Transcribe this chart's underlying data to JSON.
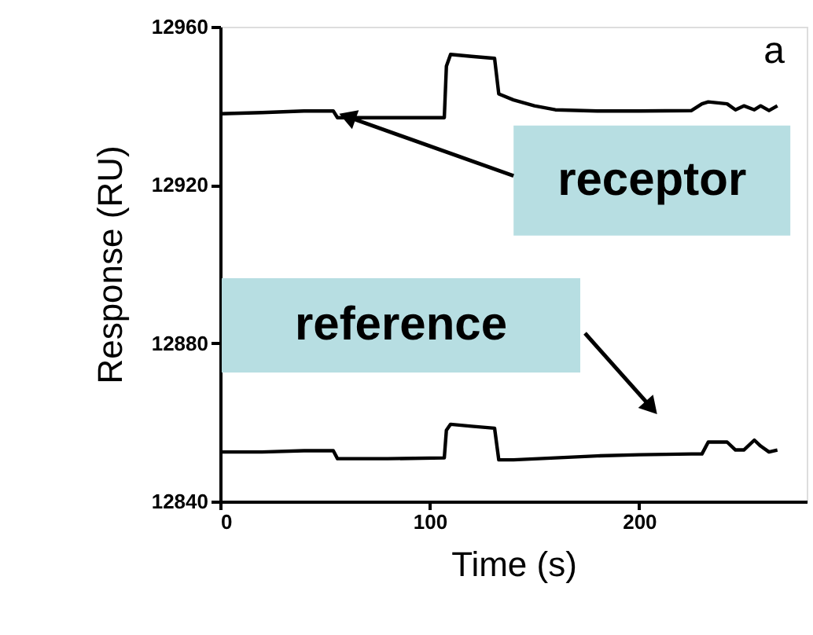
{
  "chart_data": {
    "type": "line",
    "xlabel": "Time (s)",
    "ylabel": "Response (RU)",
    "xlim": [
      0,
      280
    ],
    "xticks": [
      0,
      100,
      200
    ],
    "ylim": [
      12840,
      12960
    ],
    "yticks": [
      12840,
      12880,
      12920,
      12960
    ],
    "grid": false,
    "marker": "none",
    "line_style": "solid",
    "series": [
      {
        "color": "#000000",
        "x": [
          0,
          20,
          40,
          54,
          56,
          80,
          107,
          108,
          110,
          120,
          131,
          133,
          140,
          150,
          160,
          180,
          200,
          225,
          230,
          233,
          242,
          246,
          250,
          255,
          258,
          262,
          266
        ],
        "values": [
          12938,
          12938.3,
          12938.7,
          12938.7,
          12937,
          12937,
          12937,
          12950,
          12953,
          12952.5,
          12952,
          12943,
          12941.5,
          12940,
          12939,
          12938.7,
          12938.7,
          12938.8,
          12940.5,
          12941,
          12940.5,
          12939,
          12940,
          12939,
          12940,
          12938.8,
          12940
        ]
      },
      {
        "color": "#000000",
        "x": [
          0,
          20,
          40,
          54,
          56,
          80,
          107,
          108,
          110,
          120,
          131,
          133,
          140,
          160,
          180,
          200,
          225,
          230,
          233,
          242,
          246,
          250,
          255,
          258,
          262,
          266
        ],
        "values": [
          12852.5,
          12852.5,
          12852.8,
          12852.8,
          12850.8,
          12850.8,
          12851,
          12858,
          12859.5,
          12859,
          12858.5,
          12850.5,
          12850.5,
          12851,
          12851.5,
          12851.8,
          12852,
          12852,
          12855,
          12855,
          12853,
          12853,
          12855.5,
          12854,
          12852.5,
          12853
        ]
      }
    ],
    "annotations": [
      "a",
      {
        "text": "receptor",
        "x": 62,
        "y": 12937
      },
      "reference"
    ]
  }
}
